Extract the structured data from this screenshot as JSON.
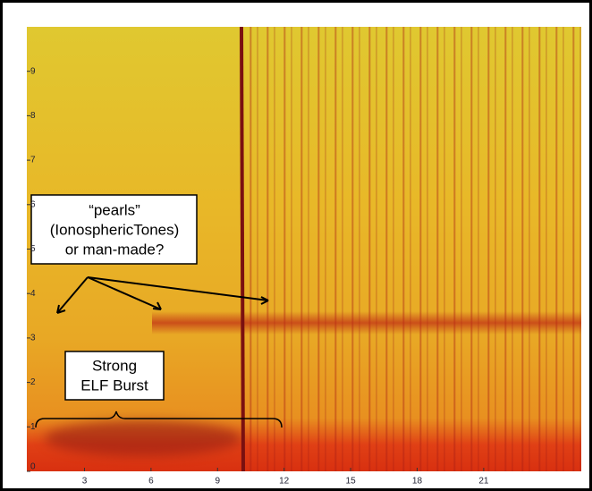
{
  "chart_data": {
    "type": "spectrogram",
    "annotations": [
      "“pearls”",
      "(IonosphericTones)",
      "or man-made?",
      "Strong",
      "ELF Burst"
    ],
    "xlim": [
      0.4,
      25.4
    ],
    "xticks": [
      3,
      6,
      9,
      12,
      15,
      18,
      21
    ],
    "ylim": [
      0,
      10
    ],
    "yticks": [
      0,
      1,
      2,
      3,
      4,
      5,
      6,
      7,
      8,
      9
    ]
  }
}
